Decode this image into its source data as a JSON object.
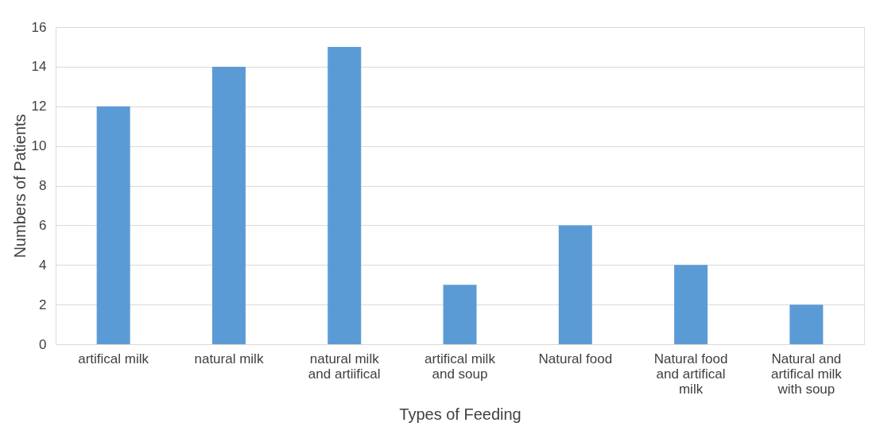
{
  "chart_data": {
    "type": "bar",
    "xlabel": "Types of Feeding",
    "ylabel": "Numbers of Patients",
    "categories": [
      "artifical milk",
      "natural milk",
      "natural milk and artiifical",
      "artifical milk and soup",
      "Natural food",
      "Natural food and artifical milk",
      "Natural and artifical milk with soup"
    ],
    "values": [
      12,
      14,
      15,
      3,
      6,
      4,
      2
    ],
    "color": "#5b9bd5",
    "ylim": [
      0,
      16
    ],
    "yticks": [
      0,
      2,
      4,
      6,
      8,
      10,
      12,
      14,
      16
    ],
    "grid": "y"
  }
}
